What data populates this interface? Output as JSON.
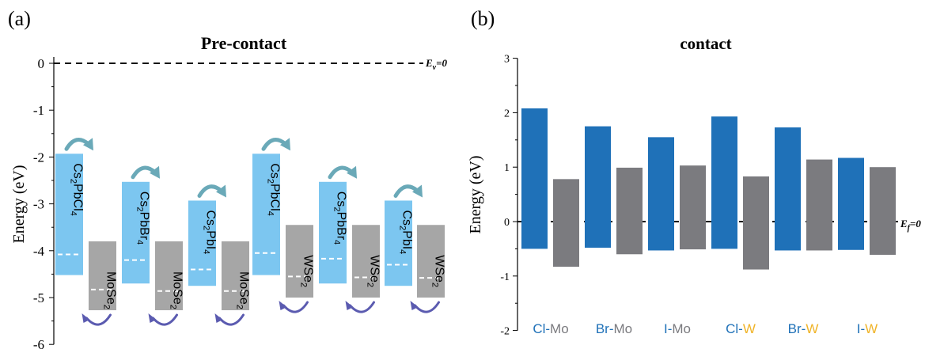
{
  "colors": {
    "light_blue": "#7cc6f0",
    "gray_a": "#a6a6a6",
    "dark_blue": "#1f71b8",
    "gray_b": "#7b7b7f",
    "arrow_teal": "#6aa9b8",
    "arrow_purple": "#5b5bb0",
    "w_yellow": "#f0b429",
    "dashed": "#000000",
    "dash_white": "#ffffff"
  },
  "panel_labels": {
    "a": "(a)",
    "b": "(b)"
  },
  "chart_data": [
    {
      "type": "bar",
      "subtype": "floating-bar",
      "title": "Pre-contact",
      "ylabel": "Energy (eV)",
      "ylim": [
        -6,
        0
      ],
      "yticks": [
        0,
        -1,
        -2,
        -3,
        -4,
        -5,
        -6
      ],
      "reference_line": {
        "value": 0,
        "label": "E_v=0",
        "label_main": "E",
        "label_sub": "v",
        "label_tail": "=0"
      },
      "bars": [
        {
          "label_parts": [
            "Cs",
            "2",
            "PbCl",
            "4"
          ],
          "type": "perovskite",
          "top": -1.93,
          "bottom": -4.52,
          "fermi": -4.08
        },
        {
          "label_parts": [
            "MoSe",
            "2"
          ],
          "type": "tmd",
          "top": -3.8,
          "bottom": -5.27,
          "fermi": -4.83
        },
        {
          "label_parts": [
            "Cs",
            "2",
            "PbBr",
            "4"
          ],
          "type": "perovskite",
          "top": -2.53,
          "bottom": -4.7,
          "fermi": -4.2
        },
        {
          "label_parts": [
            "MoSe",
            "2"
          ],
          "type": "tmd",
          "top": -3.8,
          "bottom": -5.27,
          "fermi": -4.86
        },
        {
          "label_parts": [
            "Cs",
            "2",
            "PbI",
            "4"
          ],
          "type": "perovskite",
          "top": -2.93,
          "bottom": -4.75,
          "fermi": -4.4
        },
        {
          "label_parts": [
            "MoSe",
            "2"
          ],
          "type": "tmd",
          "top": -3.8,
          "bottom": -5.27,
          "fermi": -4.86
        },
        {
          "label_parts": [
            "Cs",
            "2",
            "PbCl",
            "4"
          ],
          "type": "perovskite",
          "top": -1.93,
          "bottom": -4.52,
          "fermi": -4.05
        },
        {
          "label_parts": [
            "WSe",
            "2"
          ],
          "type": "tmd",
          "top": -3.45,
          "bottom": -5.0,
          "fermi": -4.55
        },
        {
          "label_parts": [
            "Cs",
            "2",
            "PbBr",
            "4"
          ],
          "type": "perovskite",
          "top": -2.53,
          "bottom": -4.7,
          "fermi": -4.17
        },
        {
          "label_parts": [
            "WSe",
            "2"
          ],
          "type": "tmd",
          "top": -3.45,
          "bottom": -5.0,
          "fermi": -4.57
        },
        {
          "label_parts": [
            "Cs",
            "2",
            "PbI",
            "4"
          ],
          "type": "perovskite",
          "top": -2.93,
          "bottom": -4.75,
          "fermi": -4.3
        },
        {
          "label_parts": [
            "WSe",
            "2"
          ],
          "type": "tmd",
          "top": -3.45,
          "bottom": -5.0,
          "fermi": -4.58
        }
      ]
    },
    {
      "type": "bar",
      "subtype": "floating-bar",
      "title": "contact",
      "ylabel": "Energy (eV)",
      "ylim": [
        -2,
        3
      ],
      "yticks": [
        3,
        2,
        1,
        0,
        -1,
        -2
      ],
      "reference_line": {
        "value": 0,
        "label": "E_f=0",
        "label_main": "E",
        "label_sub": "f",
        "label_tail": "=0"
      },
      "categories": [
        {
          "left": "Cl",
          "sep": "-",
          "right": "Mo",
          "right_color": "gray"
        },
        {
          "left": "Br",
          "sep": "-",
          "right": "Mo",
          "right_color": "gray"
        },
        {
          "left": "I",
          "sep": "-",
          "right": "Mo",
          "right_color": "gray"
        },
        {
          "left": "Cl",
          "sep": "-",
          "right": "W",
          "right_color": "yellow"
        },
        {
          "left": "Br",
          "sep": "-",
          "right": "W",
          "right_color": "yellow"
        },
        {
          "left": "I",
          "sep": "-",
          "right": "W",
          "right_color": "yellow"
        }
      ],
      "series": [
        {
          "role": "perovskite",
          "tops": [
            2.08,
            1.75,
            1.55,
            1.93,
            1.73,
            1.17
          ],
          "bottoms": [
            -0.5,
            -0.48,
            -0.53,
            -0.5,
            -0.53,
            -0.52
          ]
        },
        {
          "role": "tmd",
          "tops": [
            0.78,
            0.99,
            1.03,
            0.83,
            1.14,
            1.0
          ],
          "bottoms": [
            -0.83,
            -0.6,
            -0.51,
            -0.88,
            -0.53,
            -0.61
          ]
        }
      ]
    }
  ]
}
